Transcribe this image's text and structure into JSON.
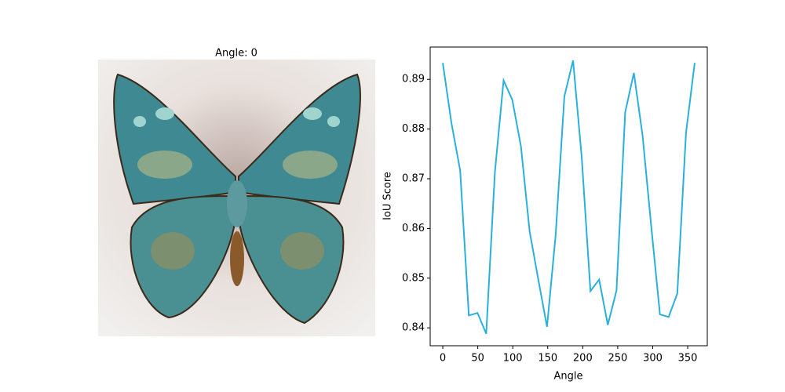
{
  "image_panel": {
    "title": "Angle: 0"
  },
  "chart_data": {
    "type": "line",
    "xlabel": "Angle",
    "ylabel": "IoU Score",
    "color": "#2bb0dc",
    "x": [
      0,
      12.41,
      24.83,
      37.24,
      49.66,
      62.07,
      74.48,
      86.9,
      99.31,
      111.72,
      124.14,
      136.55,
      148.97,
      161.38,
      173.79,
      186.21,
      198.62,
      211.03,
      223.45,
      235.86,
      248.28,
      260.69,
      273.1,
      285.52,
      297.93,
      310.34,
      322.76,
      335.17,
      347.59,
      360
    ],
    "values": [
      0.8933,
      0.8812,
      0.8717,
      0.8425,
      0.843,
      0.8388,
      0.8713,
      0.8898,
      0.8859,
      0.8765,
      0.8594,
      0.8497,
      0.8402,
      0.8588,
      0.8866,
      0.8938,
      0.8742,
      0.8474,
      0.8497,
      0.8406,
      0.8475,
      0.8834,
      0.8913,
      0.8787,
      0.8604,
      0.8427,
      0.8422,
      0.8469,
      0.8792,
      0.8933
    ],
    "xlim": [
      -18,
      378
    ],
    "ylim": [
      0.8364,
      0.8965
    ],
    "xticks": [
      0,
      50,
      100,
      150,
      200,
      250,
      300,
      350
    ],
    "yticks": [
      0.84,
      0.85,
      0.86,
      0.87,
      0.88,
      0.89
    ]
  }
}
